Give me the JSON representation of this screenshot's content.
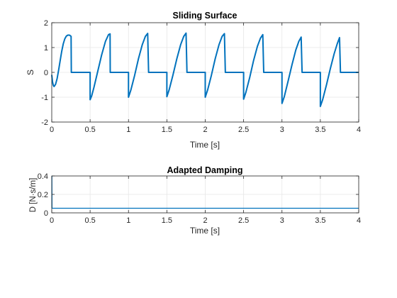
{
  "colors": {
    "line": "#0072BD",
    "grid": "#e6e6e6",
    "axis": "#262626",
    "background": "#ffffff"
  },
  "chart_data": [
    {
      "type": "line",
      "title": "Sliding Surface",
      "xlabel": "Time [s]",
      "ylabel": "S",
      "xlim": [
        0,
        4
      ],
      "ylim": [
        -2,
        2
      ],
      "xticks": [
        0,
        0.5,
        1,
        1.5,
        2,
        2.5,
        3,
        3.5,
        4
      ],
      "xtick_labels": [
        "0",
        "0.5",
        "1",
        "1.5",
        "2",
        "2.5",
        "3",
        "3.5",
        "4"
      ],
      "yticks": [
        -2,
        -1,
        0,
        1,
        2
      ],
      "ytick_labels": [
        "-2",
        "-1",
        "0",
        "1",
        "2"
      ],
      "grid": true,
      "series": [
        {
          "x": [
            0,
            0.01,
            0.02,
            0.03,
            0.05,
            0.07,
            0.09,
            0.11,
            0.13,
            0.15,
            0.17,
            0.19,
            0.21,
            0.23,
            0.24,
            0.252,
            0.255,
            0.5,
            0.5,
            0.52,
            0.55,
            0.6,
            0.65,
            0.7,
            0.74,
            0.76,
            0.762,
            1.0,
            1.0,
            1.03,
            1.08,
            1.13,
            1.18,
            1.22,
            1.25,
            1.262,
            1.5,
            1.5,
            1.53,
            1.58,
            1.63,
            1.68,
            1.72,
            1.75,
            1.762,
            2.0,
            2.0,
            2.03,
            2.08,
            2.13,
            2.18,
            2.22,
            2.25,
            2.262,
            2.5,
            2.5,
            2.53,
            2.58,
            2.63,
            2.68,
            2.72,
            2.75,
            2.762,
            3.0,
            3.0,
            3.03,
            3.08,
            3.13,
            3.18,
            3.22,
            3.25,
            3.262,
            3.5,
            3.5,
            3.53,
            3.58,
            3.63,
            3.68,
            3.72,
            3.75,
            3.762,
            4.0
          ],
          "y": [
            -0.1,
            -0.38,
            -0.52,
            -0.57,
            -0.48,
            -0.25,
            0.1,
            0.48,
            0.85,
            1.15,
            1.35,
            1.46,
            1.5,
            1.5,
            1.48,
            1.45,
            0,
            0,
            -1.1,
            -0.95,
            -0.6,
            0.05,
            0.7,
            1.25,
            1.52,
            1.55,
            0,
            0,
            -1.0,
            -0.72,
            -0.12,
            0.55,
            1.12,
            1.45,
            1.57,
            0,
            0,
            -0.98,
            -0.7,
            -0.1,
            0.55,
            1.12,
            1.45,
            1.58,
            0,
            0,
            -1.0,
            -0.72,
            -0.12,
            0.55,
            1.12,
            1.45,
            1.56,
            0,
            0,
            -1.08,
            -0.8,
            -0.2,
            0.48,
            1.05,
            1.38,
            1.52,
            0,
            0,
            -1.25,
            -0.98,
            -0.35,
            0.3,
            0.9,
            1.25,
            1.42,
            0,
            0,
            -1.37,
            -1.1,
            -0.5,
            0.15,
            0.75,
            1.15,
            1.4,
            0,
            0
          ]
        }
      ]
    },
    {
      "type": "line",
      "title": "Adapted Damping",
      "xlabel": "Time [s]",
      "ylabel": "D [N·s/m]",
      "xlim": [
        0,
        4
      ],
      "ylim": [
        0,
        0.4
      ],
      "xticks": [
        0,
        0.5,
        1,
        1.5,
        2,
        2.5,
        3,
        3.5,
        4
      ],
      "xtick_labels": [
        "0",
        "0.5",
        "1",
        "1.5",
        "2",
        "2.5",
        "3",
        "3.5",
        "4"
      ],
      "yticks": [
        0,
        0.2,
        0.4
      ],
      "ytick_labels": [
        "0",
        "0.2",
        "0.4"
      ],
      "grid": true,
      "series": [
        {
          "x": [
            0,
            0.002,
            0.004,
            4.0
          ],
          "y": [
            0.4,
            0.4,
            0.05,
            0.05
          ]
        }
      ]
    }
  ]
}
